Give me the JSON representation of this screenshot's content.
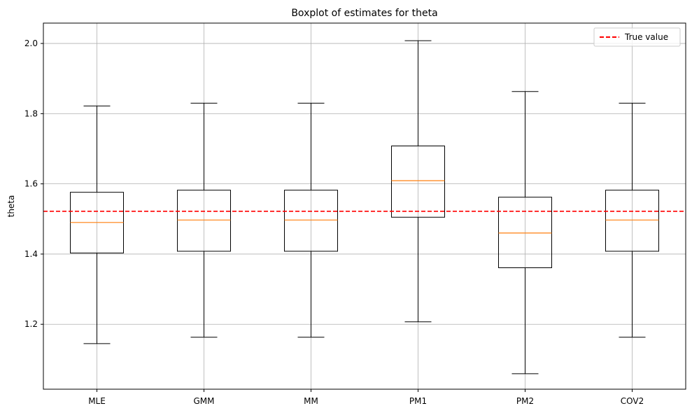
{
  "chart_data": {
    "type": "boxplot",
    "title": "Boxplot of estimates for theta",
    "xlabel": "",
    "ylabel": "theta",
    "ylim": [
      1.015,
      2.058
    ],
    "yticks": [
      1.2,
      1.4,
      1.6,
      1.8,
      2.0
    ],
    "ytick_labels": [
      "1.2",
      "1.4",
      "1.6",
      "1.8",
      "2.0"
    ],
    "grid": true,
    "categories": [
      "MLE",
      "GMM",
      "MM",
      "PM1",
      "PM2",
      "COV2"
    ],
    "boxes": [
      {
        "name": "MLE",
        "whisker_low": 1.145,
        "q1": 1.403,
        "median": 1.49,
        "q3": 1.576,
        "whisker_high": 1.822
      },
      {
        "name": "GMM",
        "whisker_low": 1.163,
        "q1": 1.408,
        "median": 1.497,
        "q3": 1.582,
        "whisker_high": 1.83
      },
      {
        "name": "MM",
        "whisker_low": 1.163,
        "q1": 1.408,
        "median": 1.497,
        "q3": 1.582,
        "whisker_high": 1.83
      },
      {
        "name": "PM1",
        "whisker_low": 1.207,
        "q1": 1.505,
        "median": 1.609,
        "q3": 1.708,
        "whisker_high": 2.008
      },
      {
        "name": "PM2",
        "whisker_low": 1.059,
        "q1": 1.361,
        "median": 1.46,
        "q3": 1.562,
        "whisker_high": 1.863
      },
      {
        "name": "COV2",
        "whisker_low": 1.163,
        "q1": 1.408,
        "median": 1.497,
        "q3": 1.582,
        "whisker_high": 1.83
      }
    ],
    "reference_line": {
      "label": "True value",
      "value": 1.522,
      "color": "#ff0000",
      "style": "dashed"
    },
    "colors": {
      "box": "#000000",
      "median": "#ff7f0e",
      "grid": "#b0b0b0"
    },
    "legend": {
      "position": "top-right",
      "entries": [
        "True value"
      ]
    }
  }
}
